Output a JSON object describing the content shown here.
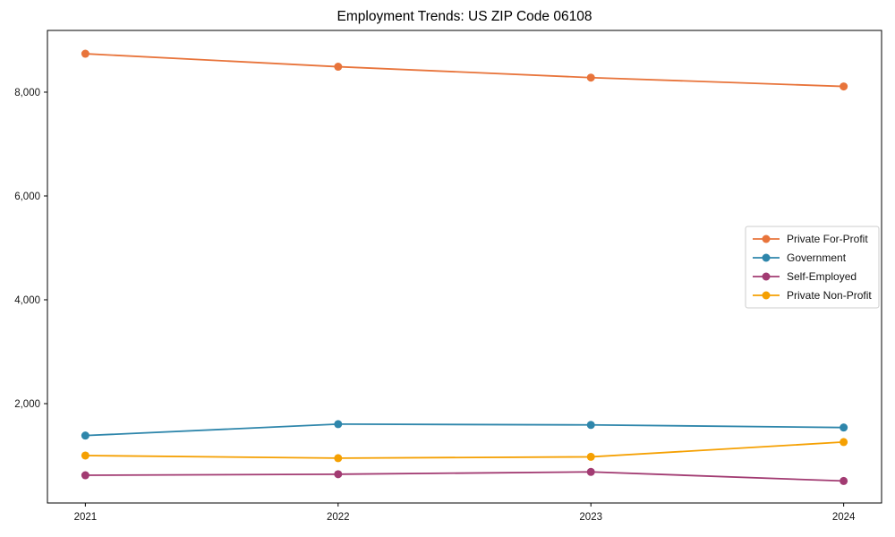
{
  "chart_data": {
    "type": "line",
    "title": "Employment Trends: US ZIP Code 06108",
    "xlabel": "",
    "ylabel": "",
    "x": [
      2021,
      2022,
      2023,
      2024
    ],
    "xtick_labels": [
      "2021",
      "2022",
      "2023",
      "2024"
    ],
    "yticks": [
      2000,
      4000,
      6000,
      8000
    ],
    "ytick_labels": [
      "2,000",
      "4,000",
      "6,000",
      "8,000"
    ],
    "xlim": [
      2020.85,
      2024.15
    ],
    "ylim": [
      86,
      9189
    ],
    "grid": false,
    "legend_position": "center right",
    "marker": "circle",
    "series": [
      {
        "name": "Private For-Profit",
        "color": "#E8743B",
        "values": [
          8740,
          8490,
          8280,
          8110
        ]
      },
      {
        "name": "Government",
        "color": "#2E86AB",
        "values": [
          1385,
          1605,
          1590,
          1540
        ]
      },
      {
        "name": "Self-Employed",
        "color": "#A23B72",
        "values": [
          620,
          640,
          685,
          510
        ]
      },
      {
        "name": "Private Non-Profit",
        "color": "#F5A002",
        "values": [
          1000,
          950,
          975,
          1260
        ]
      }
    ]
  }
}
